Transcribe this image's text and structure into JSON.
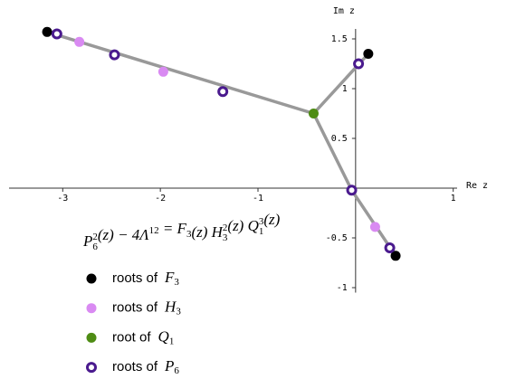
{
  "chart_data": {
    "type": "scatter",
    "x_label": "Re z",
    "y_label": "Im z",
    "xlim": [
      -3.55,
      1.04
    ],
    "ylim": [
      -1.05,
      1.6
    ],
    "xticks": [
      -3,
      -2,
      -1,
      1
    ],
    "yticks": [
      -1,
      -0.5,
      0.5,
      1,
      1.5
    ],
    "equation": [
      {
        "text": "P",
        "sub": "6",
        "sup": "2"
      },
      {
        "text": "(z) − 4Λ",
        "sup": "12"
      },
      {
        "text": " = F",
        "sub": "3"
      },
      {
        "text": "(z) H",
        "sub": "3",
        "sup": "2"
      },
      {
        "text": "(z) Q",
        "sub": "1",
        "sup": "3"
      },
      {
        "text": "(z)"
      }
    ],
    "lines": [
      {
        "color": "#999999",
        "x": [
          -3.16,
          -0.43
        ],
        "y": [
          1.57,
          0.75
        ]
      },
      {
        "color": "#999999",
        "x": [
          -0.43,
          0.13
        ],
        "y": [
          0.75,
          1.35
        ]
      },
      {
        "color": "#999999",
        "x": [
          -0.43,
          -0.04,
          0.41
        ],
        "y": [
          0.75,
          -0.02,
          -0.68
        ]
      }
    ],
    "series": [
      {
        "name": "roots of",
        "symbol": "F",
        "subscript": "3",
        "color": "#000000",
        "marker": "dot",
        "x": [
          -3.16,
          0.13,
          0.41
        ],
        "y": [
          1.57,
          1.35,
          -0.68
        ]
      },
      {
        "name": "roots of",
        "symbol": "H",
        "subscript": "3",
        "color": "#d98af2",
        "marker": "dot",
        "x": [
          -2.83,
          -1.97,
          0.2
        ],
        "y": [
          1.47,
          1.17,
          -0.39
        ]
      },
      {
        "name": "root of",
        "symbol": "Q",
        "subscript": "1",
        "color": "#4e8c14",
        "marker": "dot",
        "x": [
          -0.43
        ],
        "y": [
          0.75
        ]
      },
      {
        "name": "roots of",
        "symbol": "P",
        "subscript": "6",
        "color": "#4a1a8e",
        "marker": "ring",
        "x": [
          -3.06,
          -2.47,
          -1.36,
          0.03,
          -0.04,
          0.35
        ],
        "y": [
          1.55,
          1.34,
          0.97,
          1.25,
          -0.02,
          -0.6
        ]
      }
    ]
  }
}
